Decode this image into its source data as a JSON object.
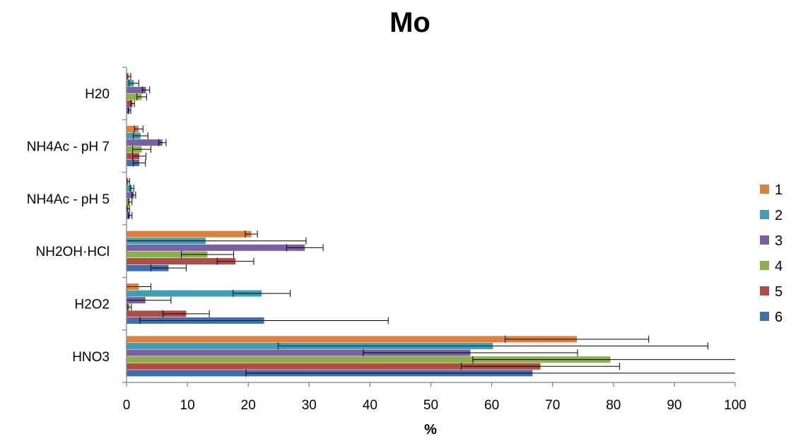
{
  "chart_data": {
    "type": "bar",
    "orientation": "horizontal",
    "title": "Mo",
    "xlabel": "%",
    "ylabel": "",
    "xlim": [
      0,
      100
    ],
    "x_ticks": [
      "0",
      "10",
      "20",
      "30",
      "40",
      "50",
      "60",
      "70",
      "80",
      "90",
      "100"
    ],
    "categories": [
      "H20",
      "NH4Ac - pH 7",
      "NH4Ac - pH 5",
      "NH2OH·HCl",
      "H2O2",
      "HNO3"
    ],
    "series": [
      {
        "name": "1",
        "color": "#e0813a",
        "values": [
          0.4,
          2.0,
          0.3,
          20.5,
          2.0,
          74.0
        ],
        "errors": [
          0.3,
          0.7,
          0.2,
          1.0,
          2.0,
          11.8
        ]
      },
      {
        "name": "2",
        "color": "#3d9fb5",
        "values": [
          1.2,
          2.3,
          0.9,
          13.0,
          22.2,
          60.2
        ],
        "errors": [
          0.8,
          1.2,
          0.3,
          16.5,
          4.7,
          35.3
        ]
      },
      {
        "name": "3",
        "color": "#7a5fa2",
        "values": [
          3.2,
          5.9,
          1.2,
          29.3,
          3.1,
          56.5
        ],
        "errors": [
          0.6,
          0.6,
          0.3,
          3.0,
          4.2,
          17.6
        ]
      },
      {
        "name": "4",
        "color": "#8cb04a",
        "values": [
          2.5,
          2.5,
          0.6,
          13.3,
          0.5,
          79.5
        ],
        "errors": [
          0.8,
          1.5,
          0.3,
          4.3,
          0.3,
          22.6
        ]
      },
      {
        "name": "5",
        "color": "#b44a46",
        "values": [
          1.0,
          2.1,
          0.3,
          17.9,
          9.8,
          68.0
        ],
        "errors": [
          0.3,
          1.1,
          0.2,
          3.0,
          3.8,
          13.0
        ]
      },
      {
        "name": "6",
        "color": "#3f6fb0",
        "values": [
          0.5,
          2.1,
          0.6,
          6.9,
          22.6,
          66.7
        ],
        "errors": [
          0.2,
          1.0,
          0.3,
          2.9,
          20.4,
          47.1
        ]
      }
    ],
    "legend_position": "right",
    "grid": false
  }
}
